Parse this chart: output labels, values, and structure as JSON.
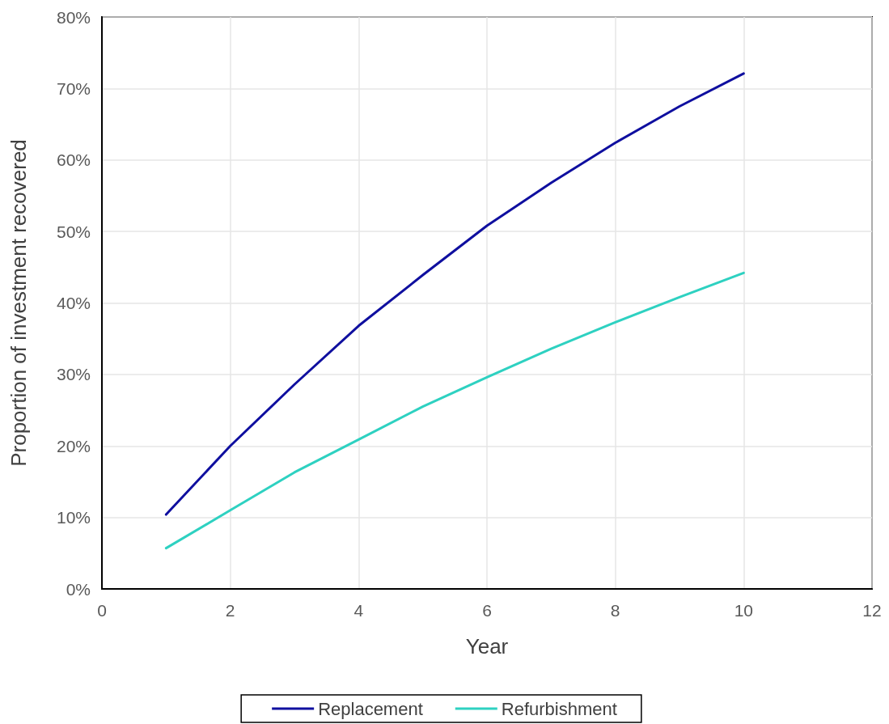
{
  "chart_data": {
    "type": "line",
    "xlabel": "Year",
    "ylabel": "Proportion of investment recovered",
    "x": [
      1,
      2,
      3,
      4,
      5,
      6,
      7,
      8,
      9,
      10
    ],
    "series": [
      {
        "name": "Replacement",
        "color": "#0f0f9f",
        "values": [
          10.4,
          20.0,
          28.6,
          36.8,
          43.9,
          50.8,
          56.8,
          62.4,
          67.5,
          72.1
        ]
      },
      {
        "name": "Refurbishment",
        "color": "#2ed1c1",
        "values": [
          5.7,
          11.0,
          16.3,
          20.9,
          25.5,
          29.6,
          33.6,
          37.3,
          40.8,
          44.2
        ]
      }
    ],
    "xlim": [
      0,
      12
    ],
    "xticks": [
      0,
      2,
      4,
      6,
      8,
      10,
      12
    ],
    "ylim": [
      0,
      80
    ],
    "yticks": [
      {
        "value": 0,
        "label": "0%"
      },
      {
        "value": 10,
        "label": "10%"
      },
      {
        "value": 20,
        "label": "20%"
      },
      {
        "value": 30,
        "label": "30%"
      },
      {
        "value": 40,
        "label": "40%"
      },
      {
        "value": 50,
        "label": "50%"
      },
      {
        "value": 60,
        "label": "60%"
      },
      {
        "value": 70,
        "label": "70%"
      },
      {
        "value": 80,
        "label": "80%"
      }
    ],
    "grid": true,
    "legend": "bottom",
    "marker": "none",
    "line_style": "solid"
  }
}
